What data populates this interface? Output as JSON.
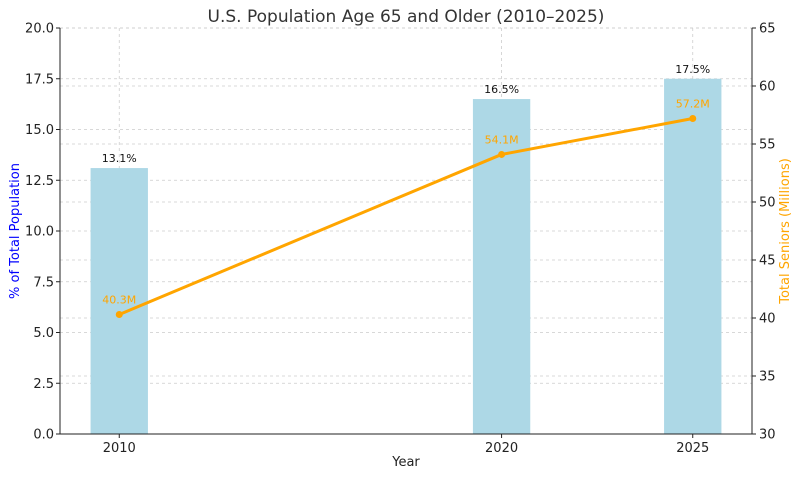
{
  "chart_data": {
    "type": "bar",
    "title": "U.S. Population Age 65 and Older (2010–2025)",
    "xlabel": "Year",
    "ylabel_left": "% of Total Population",
    "ylabel_right": "Total Seniors (Millions)",
    "x": [
      2010,
      2020,
      2025
    ],
    "x_tick_labels": [
      "2010",
      "2020",
      "2025"
    ],
    "ylim_left": [
      0,
      20
    ],
    "yticks_left": [
      "0.0",
      "2.5",
      "5.0",
      "7.5",
      "10.0",
      "12.5",
      "15.0",
      "17.5",
      "20.0"
    ],
    "ylim_right": [
      30,
      65
    ],
    "yticks_right": [
      "30",
      "35",
      "40",
      "45",
      "50",
      "55",
      "60",
      "65"
    ],
    "grid": true,
    "series": [
      {
        "type": "bar",
        "axis": "left",
        "values": [
          13.1,
          16.5,
          17.5
        ],
        "labels": [
          "13.1%",
          "16.5%",
          "17.5%"
        ],
        "color": "#add8e6"
      },
      {
        "type": "line",
        "axis": "right",
        "values": [
          40.3,
          54.1,
          57.2
        ],
        "labels": [
          "40.3M",
          "54.1M",
          "57.2M"
        ],
        "color": "#ffa500"
      }
    ],
    "colors": {
      "left_axis_label": "#0000ff",
      "right_axis_label": "#ffa500"
    }
  }
}
